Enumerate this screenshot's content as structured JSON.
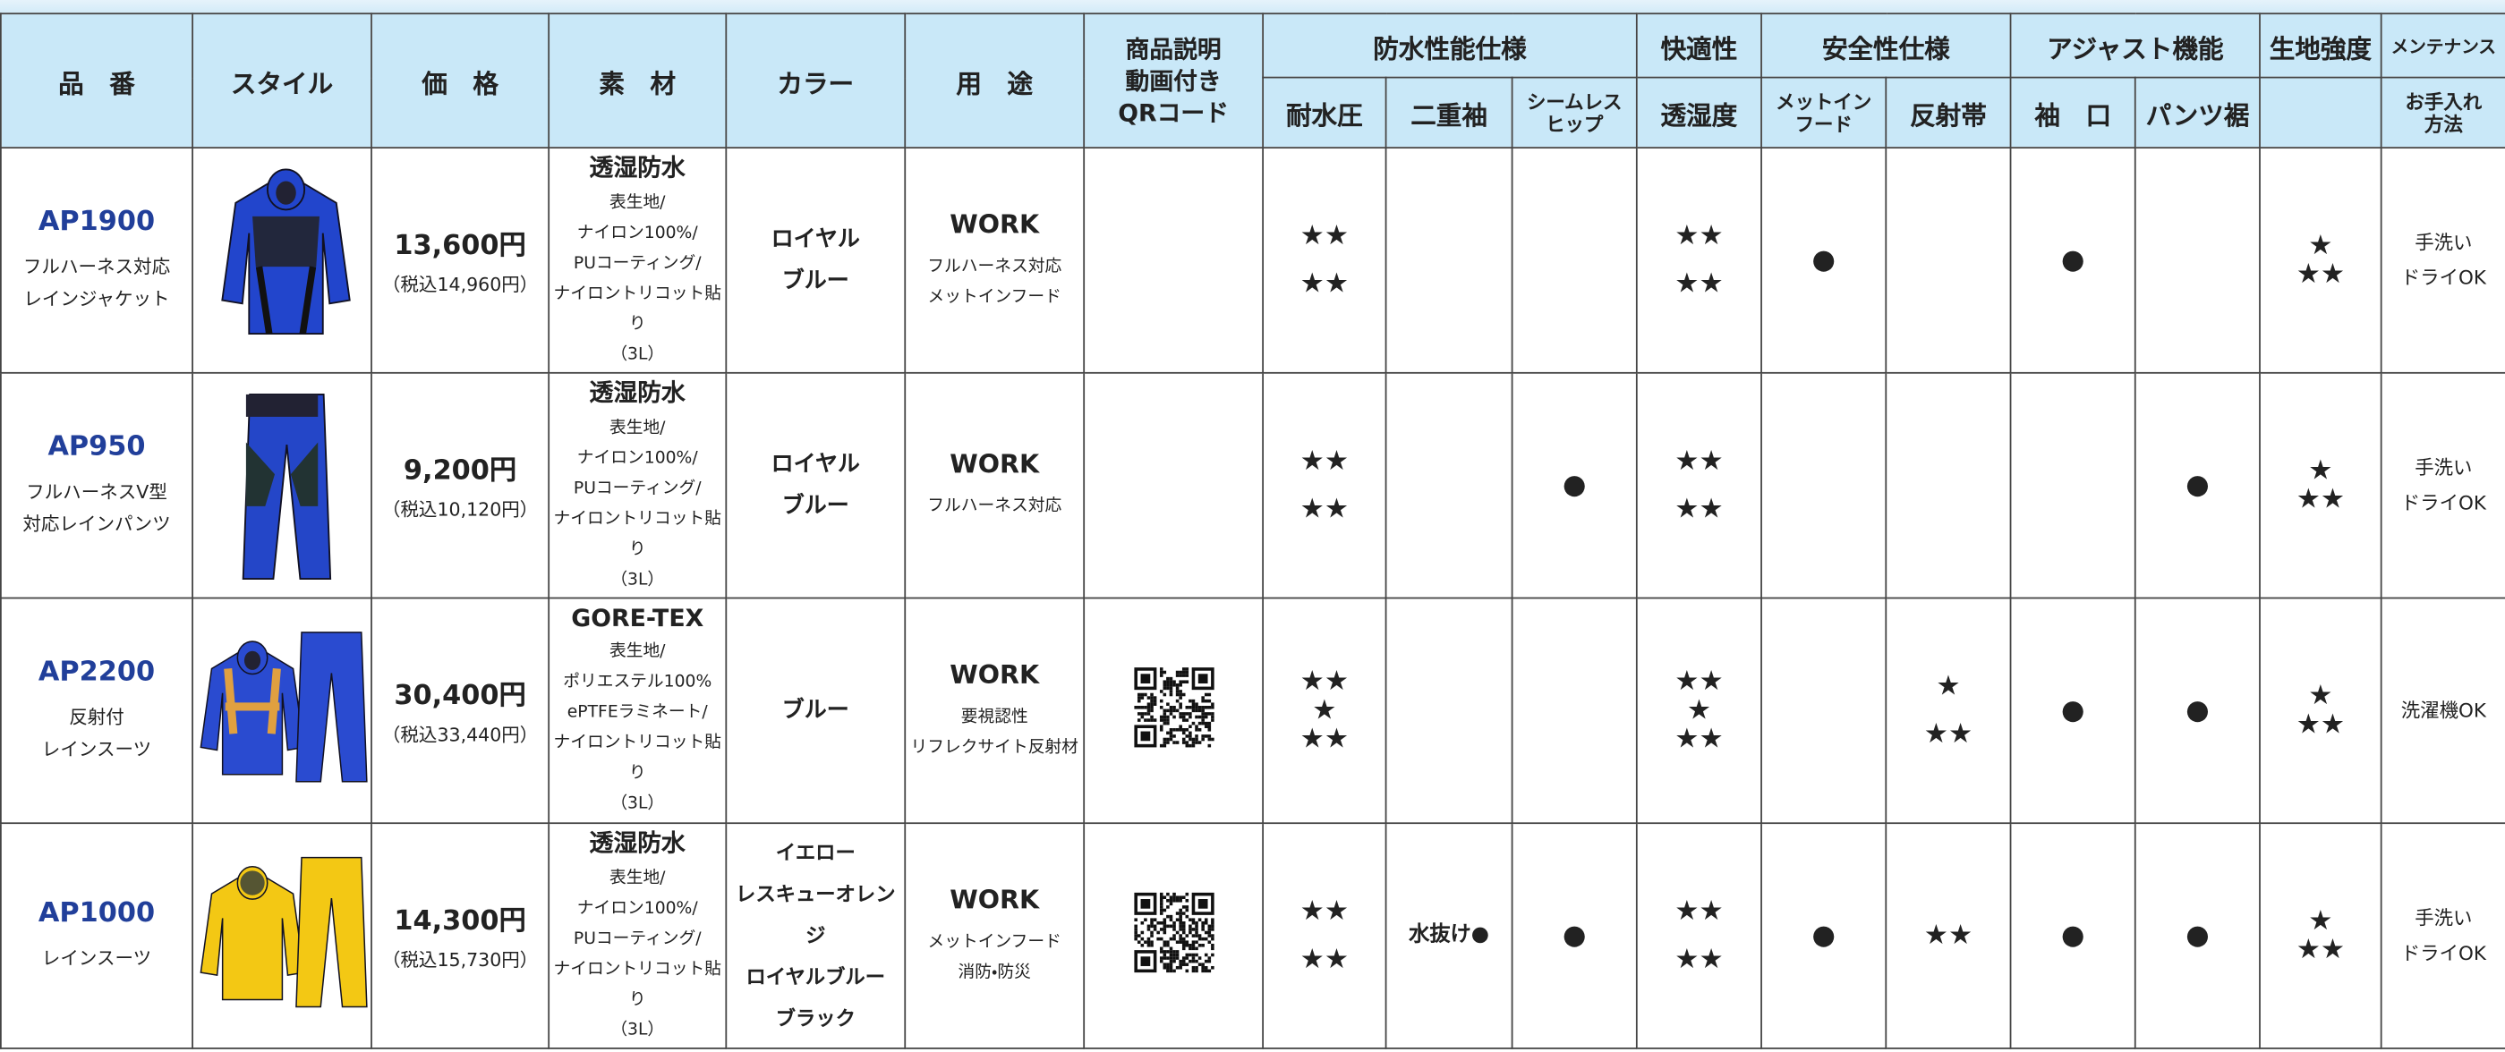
{
  "table": {
    "header_row1": [
      "品　番",
      "スタイル",
      "価　格",
      "素　材",
      "カラー",
      "用　途",
      [
        "商品説明",
        "動画付き",
        "QRコード"
      ],
      "防水性能仕様",
      "快適性",
      "安全性仕様",
      "アジャスト機能",
      "生地強度",
      "メンテナンス"
    ],
    "header_row2": [
      "耐水圧",
      "二重袖",
      [
        "シームレス",
        "ヒップ"
      ],
      "透湿度",
      [
        "メットイン",
        "フード"
      ],
      "反射帯",
      "袖　口",
      "パンツ裾",
      [
        "お手入れ",
        "方法"
      ]
    ],
    "rows": [
      {
        "code": "AP1900",
        "name": [
          "フルハーネス対応",
          "レインジャケット"
        ],
        "price": "13,600円",
        "price_tax": "（税込14,960円）",
        "material_title": "透湿防水",
        "material": [
          "表生地/",
          "ナイロン100%/",
          "PUコーティング/",
          "ナイロントリコット貼り",
          "（3L）"
        ],
        "color": [
          "ロイヤル",
          "ブルー"
        ],
        "use_title": "WORK",
        "use": [
          "フルハーネス対応",
          "メットインフード"
        ],
        "qr": false,
        "specs": [
          [
            "★★",
            "★★"
          ],
          [],
          [],
          [
            "★★",
            "★★"
          ],
          [
            "●"
          ],
          [],
          [
            "●"
          ],
          [],
          [
            "★",
            "★★"
          ],
          [
            "手洗い",
            "ドライOK"
          ]
        ]
      },
      {
        "code": "AP950",
        "name": [
          "フルハーネスV型",
          "対応レインパンツ"
        ],
        "price": "9,200円",
        "price_tax": "（税込10,120円）",
        "material_title": "透湿防水",
        "material": [
          "表生地/",
          "ナイロン100%/",
          "PUコーティング/",
          "ナイロントリコット貼り",
          "（3L）"
        ],
        "color": [
          "ロイヤル",
          "ブルー"
        ],
        "use_title": "WORK",
        "use": [
          "フルハーネス対応"
        ],
        "qr": false,
        "specs": [
          [
            "★★",
            "★★"
          ],
          [],
          [
            "●"
          ],
          [
            "★★",
            "★★"
          ],
          [],
          [],
          [],
          [
            "●"
          ],
          [
            "★",
            "★★"
          ],
          [
            "手洗い",
            "ドライOK"
          ]
        ]
      },
      {
        "code": "AP2200",
        "name": [
          "反射付",
          "レインスーツ"
        ],
        "price": "30,400円",
        "price_tax": "（税込33,440円）",
        "material_title": "GORE-TEX",
        "material": [
          "表生地/",
          "ポリエステル100%",
          "ePTFEラミネート/",
          "ナイロントリコット貼り",
          "（3L）"
        ],
        "color": [
          "ブルー"
        ],
        "use_title": "WORK",
        "use": [
          "要視認性",
          "リフレクサイト反射材"
        ],
        "qr": true,
        "specs": [
          [
            "★★",
            "★",
            "★★"
          ],
          [],
          [],
          [
            "★★",
            "★",
            "★★"
          ],
          [],
          [
            "★",
            "★★"
          ],
          [
            "●"
          ],
          [
            "●"
          ],
          [
            "★",
            "★★"
          ],
          [
            "洗濯機OK"
          ]
        ]
      },
      {
        "code": "AP1000",
        "name": [
          "レインスーツ"
        ],
        "price": "14,300円",
        "price_tax": "（税込15,730円）",
        "material_title": "透湿防水",
        "material": [
          "表生地/",
          "ナイロン100%/",
          "PUコーティング/",
          "ナイロントリコット貼り",
          "（3L）"
        ],
        "color": [
          "イエロー",
          "レスキューオレンジ",
          "ロイヤルブルー",
          "ブラック"
        ],
        "use_title": "WORK",
        "use": [
          "メットインフード",
          "消防・防災"
        ],
        "qr": true,
        "specs": [
          [
            "★★",
            "★★"
          ],
          [
            "水抜け●"
          ],
          [
            "●"
          ],
          [
            "★★",
            "★★"
          ],
          [
            "●"
          ],
          [
            "★★"
          ],
          [
            "●"
          ],
          [
            "●"
          ],
          [
            "★",
            "★★"
          ],
          [
            "手洗い",
            "ドライOK"
          ]
        ]
      }
    ]
  }
}
